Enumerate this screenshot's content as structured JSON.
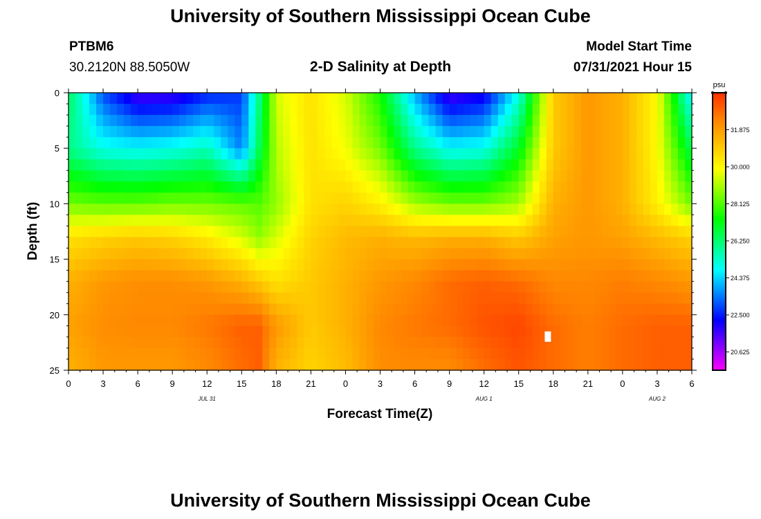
{
  "header": {
    "title": "University of Southern Mississippi Ocean Cube",
    "station_id": "PTBM6",
    "station_coords": "30.2120N  88.5050W",
    "plot_title": "2-D Salinity at Depth",
    "model_start_label": "Model Start Time",
    "model_start_value": "07/31/2021 Hour 15"
  },
  "footer": {
    "title": "University of Southern Mississippi Ocean Cube"
  },
  "chart_data": {
    "type": "heatmap",
    "title": "2-D Salinity at Depth",
    "xlabel": "Forecast Time(Z)",
    "ylabel": "Depth (ft)",
    "x_tick_labels": [
      "0",
      "3",
      "6",
      "9",
      "12",
      "15",
      "18",
      "21",
      "0",
      "3",
      "6",
      "9",
      "12",
      "15",
      "18",
      "21",
      "0",
      "3",
      "6"
    ],
    "x_date_labels": [
      {
        "label": "JUL 31",
        "hour_index": 12
      },
      {
        "label": "AUG 1",
        "hour_index": 36
      },
      {
        "label": "AUG 2",
        "hour_index": 51
      }
    ],
    "x_range_hours": [
      0,
      54
    ],
    "y_tick_labels": [
      "0",
      "5",
      "10",
      "15",
      "20",
      "25"
    ],
    "ylim": [
      0,
      25
    ],
    "colorbar": {
      "unit": "psu",
      "min": 19.7,
      "max": 33.75,
      "labels": [
        "31.875",
        "30.000",
        "28.125",
        "26.250",
        "24.375",
        "22.500",
        "20.625"
      ],
      "label_values": [
        31.875,
        30.0,
        28.125,
        26.25,
        24.375,
        22.5,
        20.625
      ],
      "colors": [
        "#ff00ff",
        "#8000ff",
        "#0000ff",
        "#0080ff",
        "#00ffff",
        "#00ff80",
        "#00ff00",
        "#80ff00",
        "#ffff00",
        "#ffc000",
        "#ff8000",
        "#ff3000"
      ]
    },
    "depth_rows": [
      0.5,
      1.5,
      2.5,
      3.5,
      4.5,
      5.5,
      6.5,
      7.5,
      8.5,
      9.5,
      10.5,
      11.5,
      12.5,
      13.5,
      14.5,
      15.5,
      16.5,
      17.5,
      18.5,
      19.5,
      20.5,
      21.5,
      22.5,
      23.5,
      24.5
    ],
    "profiles": {
      "hours": [
        0,
        3,
        6,
        9,
        12,
        15,
        16.5,
        18,
        21,
        24,
        27,
        30,
        33,
        36,
        39,
        42,
        45,
        48,
        51,
        54
      ],
      "surface": [
        26.5,
        23.0,
        21.5,
        21.6,
        22.5,
        22.8,
        26.0,
        29.5,
        30.5,
        29.5,
        27.5,
        24.0,
        21.5,
        22.0,
        25.0,
        31.0,
        32.0,
        31.5,
        30.0,
        24.5
      ],
      "d5": [
        26.0,
        25.0,
        24.8,
        25.0,
        25.5,
        23.5,
        26.5,
        29.2,
        30.5,
        29.8,
        28.5,
        26.0,
        24.8,
        25.0,
        27.0,
        31.0,
        32.0,
        31.5,
        30.0,
        26.5
      ],
      "d10": [
        28.5,
        28.3,
        28.3,
        28.5,
        28.5,
        28.3,
        28.2,
        28.8,
        30.5,
        30.8,
        30.2,
        29.0,
        28.5,
        28.5,
        29.0,
        31.5,
        32.0,
        31.5,
        30.2,
        28.5
      ],
      "d13": [
        30.5,
        30.8,
        31.0,
        30.8,
        30.3,
        29.5,
        28.8,
        29.5,
        30.8,
        31.3,
        31.5,
        31.3,
        31.5,
        31.5,
        31.0,
        31.8,
        32.0,
        31.8,
        31.3,
        30.8
      ],
      "d17": [
        31.5,
        32.0,
        32.2,
        32.2,
        32.0,
        31.5,
        31.0,
        30.5,
        31.0,
        31.5,
        32.0,
        32.3,
        32.8,
        33.0,
        32.8,
        32.3,
        32.3,
        32.5,
        32.3,
        32.0
      ],
      "d21": [
        31.8,
        32.2,
        32.3,
        32.3,
        32.6,
        33.0,
        33.0,
        32.0,
        31.0,
        31.5,
        32.3,
        32.6,
        32.8,
        33.2,
        33.4,
        32.8,
        32.5,
        32.8,
        33.0,
        33.0
      ],
      "d24": [
        31.5,
        32.0,
        32.0,
        32.0,
        32.3,
        32.8,
        33.0,
        31.5,
        30.8,
        31.3,
        32.2,
        32.3,
        32.3,
        32.8,
        33.2,
        32.8,
        32.5,
        32.8,
        33.0,
        33.0
      ]
    },
    "profile_depths": [
      0,
      5,
      10,
      13,
      17,
      21,
      24.5
    ],
    "marker": {
      "hour": 41.5,
      "depth": 22
    }
  }
}
